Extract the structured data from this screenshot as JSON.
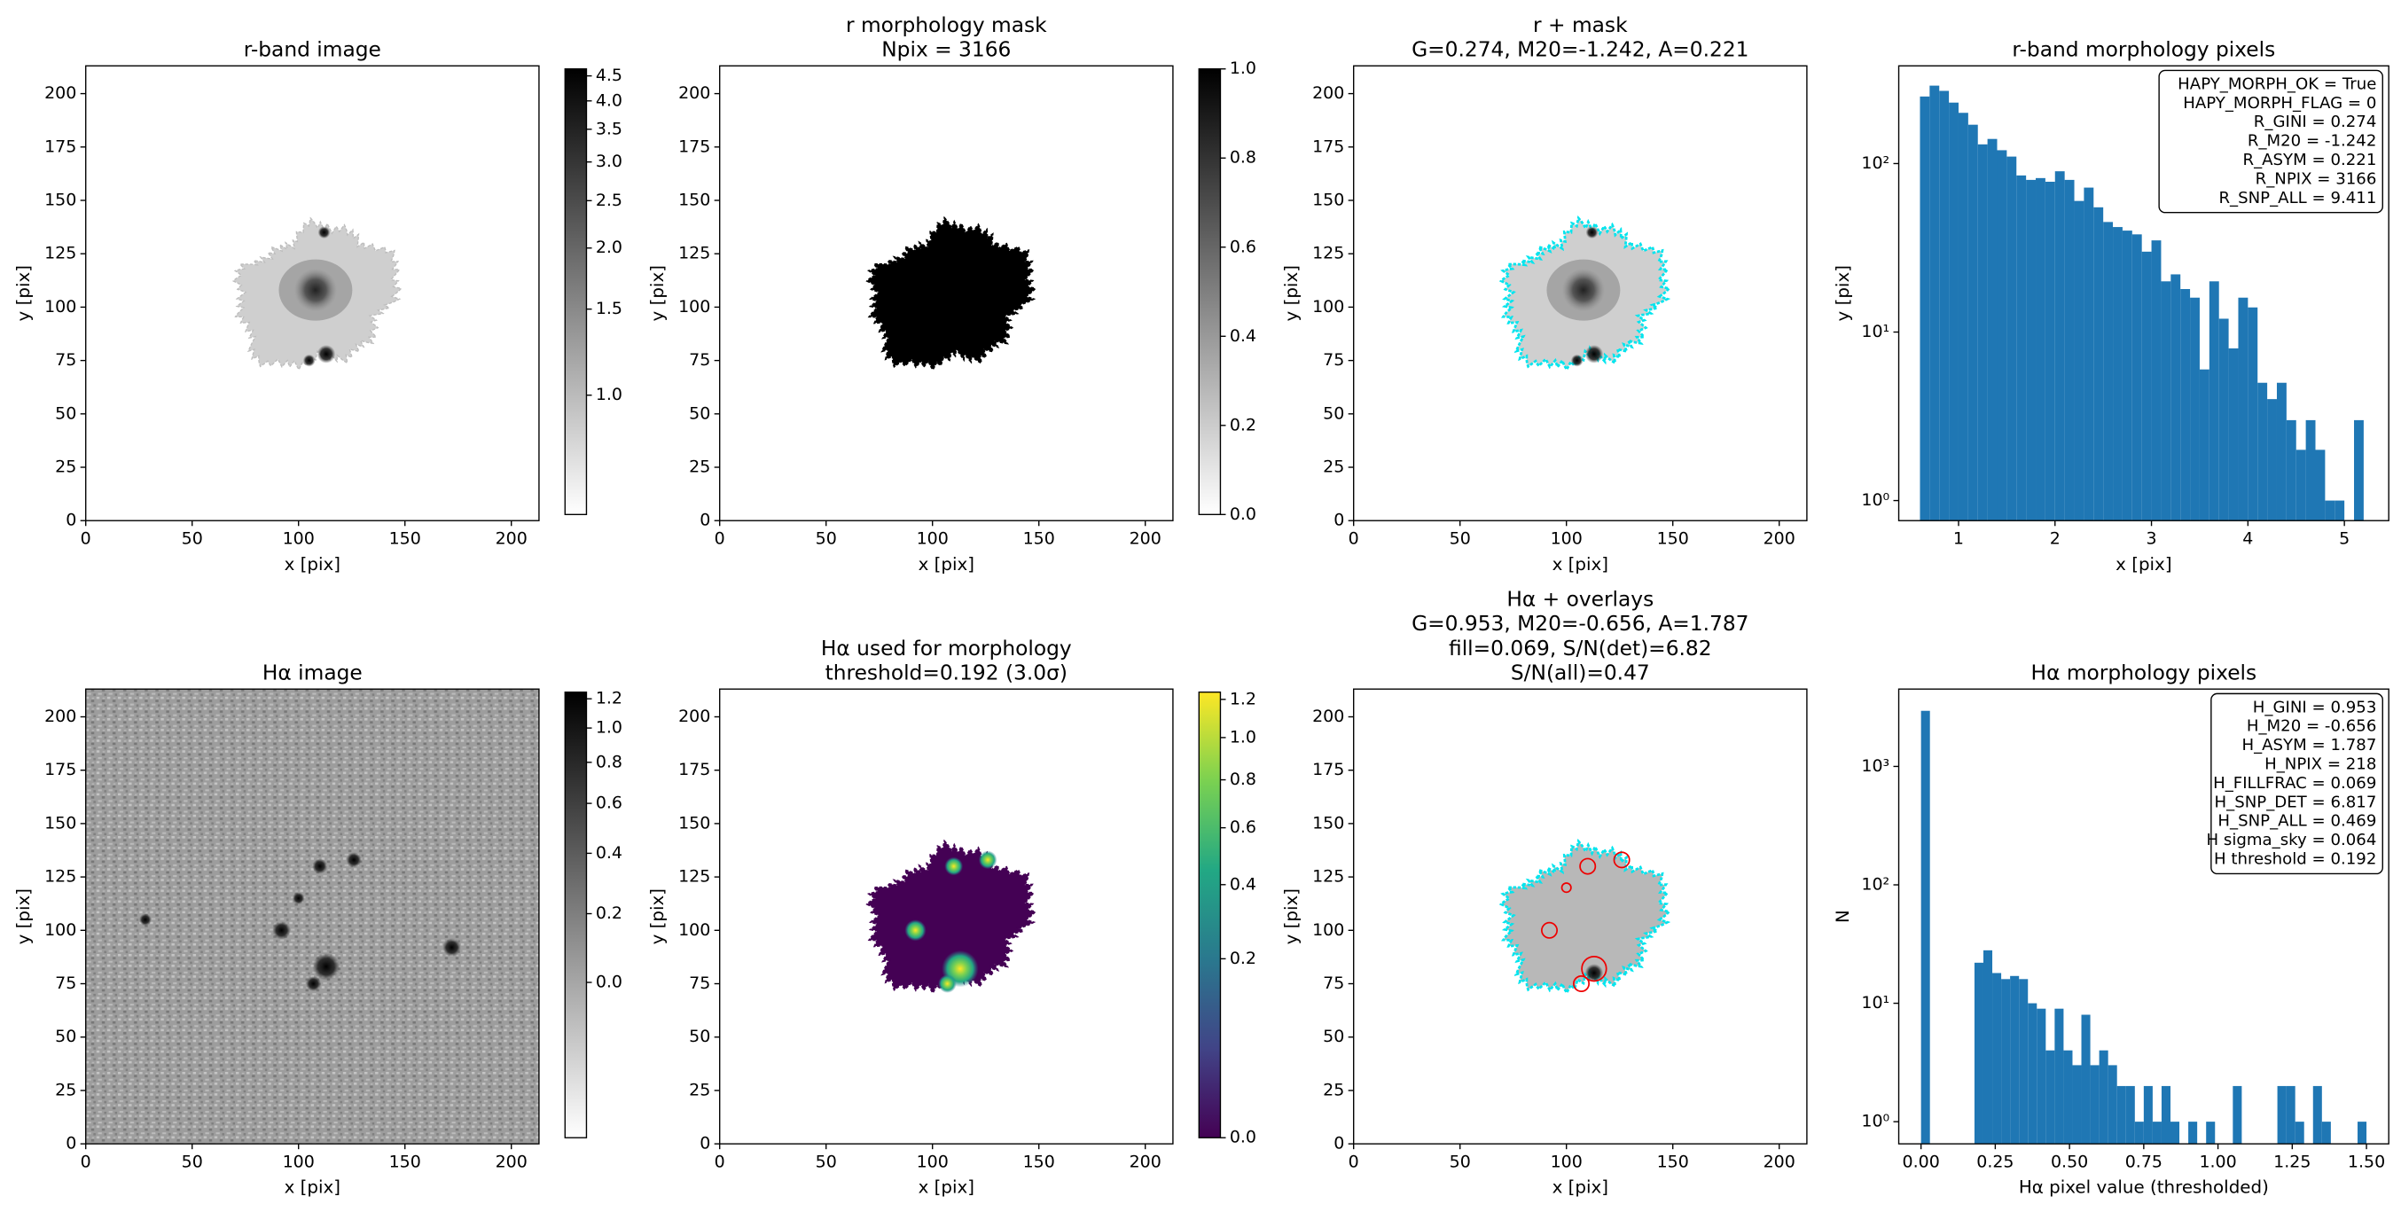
{
  "chart_data": [
    {
      "type": "image",
      "title": [
        "r-band image"
      ],
      "xlabel": "x [pix]",
      "ylabel": "y [pix]",
      "xlim": [
        0,
        213
      ],
      "ylim": [
        0,
        213
      ],
      "xticks": [
        0,
        50,
        100,
        150,
        200
      ],
      "yticks": [
        0,
        25,
        50,
        75,
        100,
        125,
        150,
        175,
        200
      ],
      "colorbar": {
        "cmap": "gray_r",
        "scale": "log",
        "lim": [
          0.57,
          4.65
        ],
        "ticks": [
          {
            "value": 1,
            "label": "1.0"
          },
          1.5,
          {
            "value": 2,
            "label": "2.0"
          },
          2.5,
          {
            "value": 3,
            "label": "3.0"
          },
          3.5,
          {
            "value": 4,
            "label": "4.0"
          },
          4.5
        ]
      }
    },
    {
      "type": "image",
      "title": [
        "r morphology mask",
        "Npix = 3166"
      ],
      "xlabel": "x [pix]",
      "ylabel": "y [pix]",
      "xlim": [
        0,
        213
      ],
      "ylim": [
        0,
        213
      ],
      "xticks": [
        0,
        50,
        100,
        150,
        200
      ],
      "yticks": [
        0,
        25,
        50,
        75,
        100,
        125,
        150,
        175,
        200
      ],
      "colorbar": {
        "cmap": "gray_r",
        "scale": "linear",
        "lim": [
          0,
          1
        ],
        "ticks": [
          {
            "value": 0,
            "label": "0.0"
          },
          0.2,
          0.4,
          0.6,
          0.8,
          {
            "value": 1,
            "label": "1.0"
          }
        ]
      }
    },
    {
      "type": "image",
      "title": [
        "r + mask",
        "G=0.274, M20=-1.242, A=0.221"
      ],
      "xlabel": "x [pix]",
      "ylabel": "y [pix]",
      "xlim": [
        0,
        213
      ],
      "ylim": [
        0,
        213
      ],
      "xticks": [
        0,
        50,
        100,
        150,
        200
      ],
      "yticks": [
        0,
        25,
        50,
        75,
        100,
        125,
        150,
        175,
        200
      ]
    },
    {
      "type": "histogram",
      "title": [
        "r-band morphology pixels"
      ],
      "xlabel": "x [pix]",
      "ylabel": "y [pix]",
      "color": "#1f77b4",
      "bins": [
        0.6,
        0.7,
        0.8,
        0.9,
        1.0,
        1.1,
        1.2,
        1.3,
        1.4,
        1.5,
        1.6,
        1.7,
        1.8,
        1.9,
        2.0,
        2.1,
        2.2,
        2.3,
        2.4,
        2.5,
        2.6,
        2.7,
        2.8,
        2.9,
        3.0,
        3.1,
        3.2,
        3.3,
        3.4,
        3.5,
        3.6,
        3.7,
        3.8,
        3.9,
        4.0,
        4.1,
        4.2,
        4.3,
        4.4,
        4.5,
        4.6,
        4.7,
        4.8,
        4.9,
        5.0,
        5.1,
        5.2
      ],
      "values": [
        250,
        290,
        270,
        230,
        200,
        170,
        130,
        140,
        120,
        110,
        85,
        80,
        82,
        78,
        90,
        80,
        60,
        72,
        55,
        45,
        42,
        40,
        38,
        30,
        35,
        20,
        22,
        18,
        16,
        6,
        20,
        12,
        8,
        16,
        14,
        5,
        4,
        5,
        3,
        2,
        3,
        2,
        1,
        1,
        0,
        3
      ],
      "xlim": [
        0.38,
        5.46
      ],
      "xticks": [
        1,
        2,
        3,
        4,
        5
      ],
      "ylog": true,
      "ylim": [
        0.76,
        380
      ],
      "yticks": [
        {
          "value": 1,
          "label": "10⁰"
        },
        {
          "value": 10,
          "label": "10¹"
        },
        {
          "value": 100,
          "label": "10²"
        }
      ],
      "annotation": [
        "HAPY_MORPH_OK = True",
        "HAPY_MORPH_FLAG = 0",
        "R_GINI = 0.274",
        "R_M20 = -1.242",
        "R_ASYM = 0.221",
        "R_NPIX = 3166",
        "R_SNP_ALL = 9.411"
      ]
    },
    {
      "type": "image",
      "title": [
        "Hα image"
      ],
      "xlabel": "x [pix]",
      "ylabel": "y [pix]",
      "xlim": [
        0,
        213
      ],
      "ylim": [
        0,
        213
      ],
      "xticks": [
        0,
        50,
        100,
        150,
        200
      ],
      "yticks": [
        0,
        25,
        50,
        75,
        100,
        125,
        150,
        175,
        200
      ],
      "colorbar": {
        "cmap": "gray_r",
        "scale": "asinh",
        "lim": [
          -0.5,
          1.25
        ],
        "ticks": [
          {
            "value": 0,
            "label": "0.0"
          },
          0.2,
          0.4,
          0.6,
          0.8,
          {
            "value": 1,
            "label": "1.0"
          },
          1.2
        ]
      }
    },
    {
      "type": "image",
      "title": [
        "Hα used for morphology",
        "threshold=0.192 (3.0σ)"
      ],
      "xlabel": "x [pix]",
      "ylabel": "y [pix]",
      "xlim": [
        0,
        213
      ],
      "ylim": [
        0,
        213
      ],
      "xticks": [
        0,
        50,
        100,
        150,
        200
      ],
      "yticks": [
        0,
        25,
        50,
        75,
        100,
        125,
        150,
        175,
        200
      ],
      "colorbar": {
        "cmap": "viridis",
        "scale": "sqrt",
        "lim": [
          0,
          1.24
        ],
        "ticks": [
          {
            "value": 0,
            "label": "0.0"
          },
          0.2,
          0.4,
          0.6,
          0.8,
          {
            "value": 1,
            "label": "1.0"
          },
          1.2
        ]
      }
    },
    {
      "type": "image",
      "title": [
        "Hα + overlays",
        "G=0.953, M20=-0.656, A=1.787",
        "fill=0.069, S/N(det)=6.82",
        "S/N(all)=0.47"
      ],
      "xlabel": "x [pix]",
      "ylabel": "y [pix]",
      "xlim": [
        0,
        213
      ],
      "ylim": [
        0,
        213
      ],
      "xticks": [
        0,
        50,
        100,
        150,
        200
      ],
      "yticks": [
        0,
        25,
        50,
        75,
        100,
        125,
        150,
        175,
        200
      ]
    },
    {
      "type": "histogram",
      "title": [
        "Hα morphology pixels"
      ],
      "xlabel": "Hα pixel value (thresholded)",
      "ylabel": "N",
      "color": "#1f77b4",
      "bins": [
        0,
        0.03,
        0.06,
        0.09,
        0.12,
        0.15,
        0.18,
        0.21,
        0.24,
        0.27,
        0.3,
        0.33,
        0.36,
        0.39,
        0.42,
        0.45,
        0.48,
        0.51,
        0.54,
        0.57,
        0.6,
        0.63,
        0.66,
        0.69,
        0.72,
        0.75,
        0.78,
        0.81,
        0.84,
        0.87,
        0.9,
        0.93,
        0.96,
        0.99,
        1.02,
        1.05,
        1.08,
        1.11,
        1.14,
        1.17,
        1.2,
        1.23,
        1.26,
        1.29,
        1.32,
        1.35,
        1.38,
        1.41,
        1.44,
        1.47,
        1.5
      ],
      "values": [
        2948,
        0,
        0,
        0,
        0,
        0,
        22,
        28,
        18,
        16,
        17,
        16,
        10,
        9,
        4,
        9,
        4,
        3,
        8,
        3,
        4,
        3,
        2,
        2,
        1,
        2,
        1,
        2,
        1,
        0,
        1,
        0,
        1,
        0,
        0,
        2,
        0,
        0,
        0,
        0,
        2,
        2,
        1,
        0,
        2,
        1,
        0,
        0,
        0,
        1
      ],
      "xlim": [
        -0.075,
        1.575
      ],
      "xticks": [
        {
          "value": 0,
          "label": "0.00"
        },
        0.25,
        {
          "value": 0.5,
          "label": "0.50"
        },
        0.75,
        {
          "value": 1,
          "label": "1.00"
        },
        1.25,
        {
          "value": 1.5,
          "label": "1.50"
        }
      ],
      "ylog": true,
      "ylim": [
        0.65,
        4500
      ],
      "yticks": [
        {
          "value": 1,
          "label": "10⁰"
        },
        {
          "value": 10,
          "label": "10¹"
        },
        {
          "value": 100,
          "label": "10²"
        },
        {
          "value": 1000,
          "label": "10³"
        }
      ],
      "annotation": [
        "H_GINI = 0.953",
        "H_M20 = -0.656",
        "H_ASYM = 1.787",
        "H_NPIX = 218",
        "H_FILLFRAC = 0.069",
        "H_SNP_DET = 6.817",
        "H_SNP_ALL = 0.469",
        "H sigma_sky = 0.064",
        "H threshold = 0.192"
      ]
    }
  ]
}
